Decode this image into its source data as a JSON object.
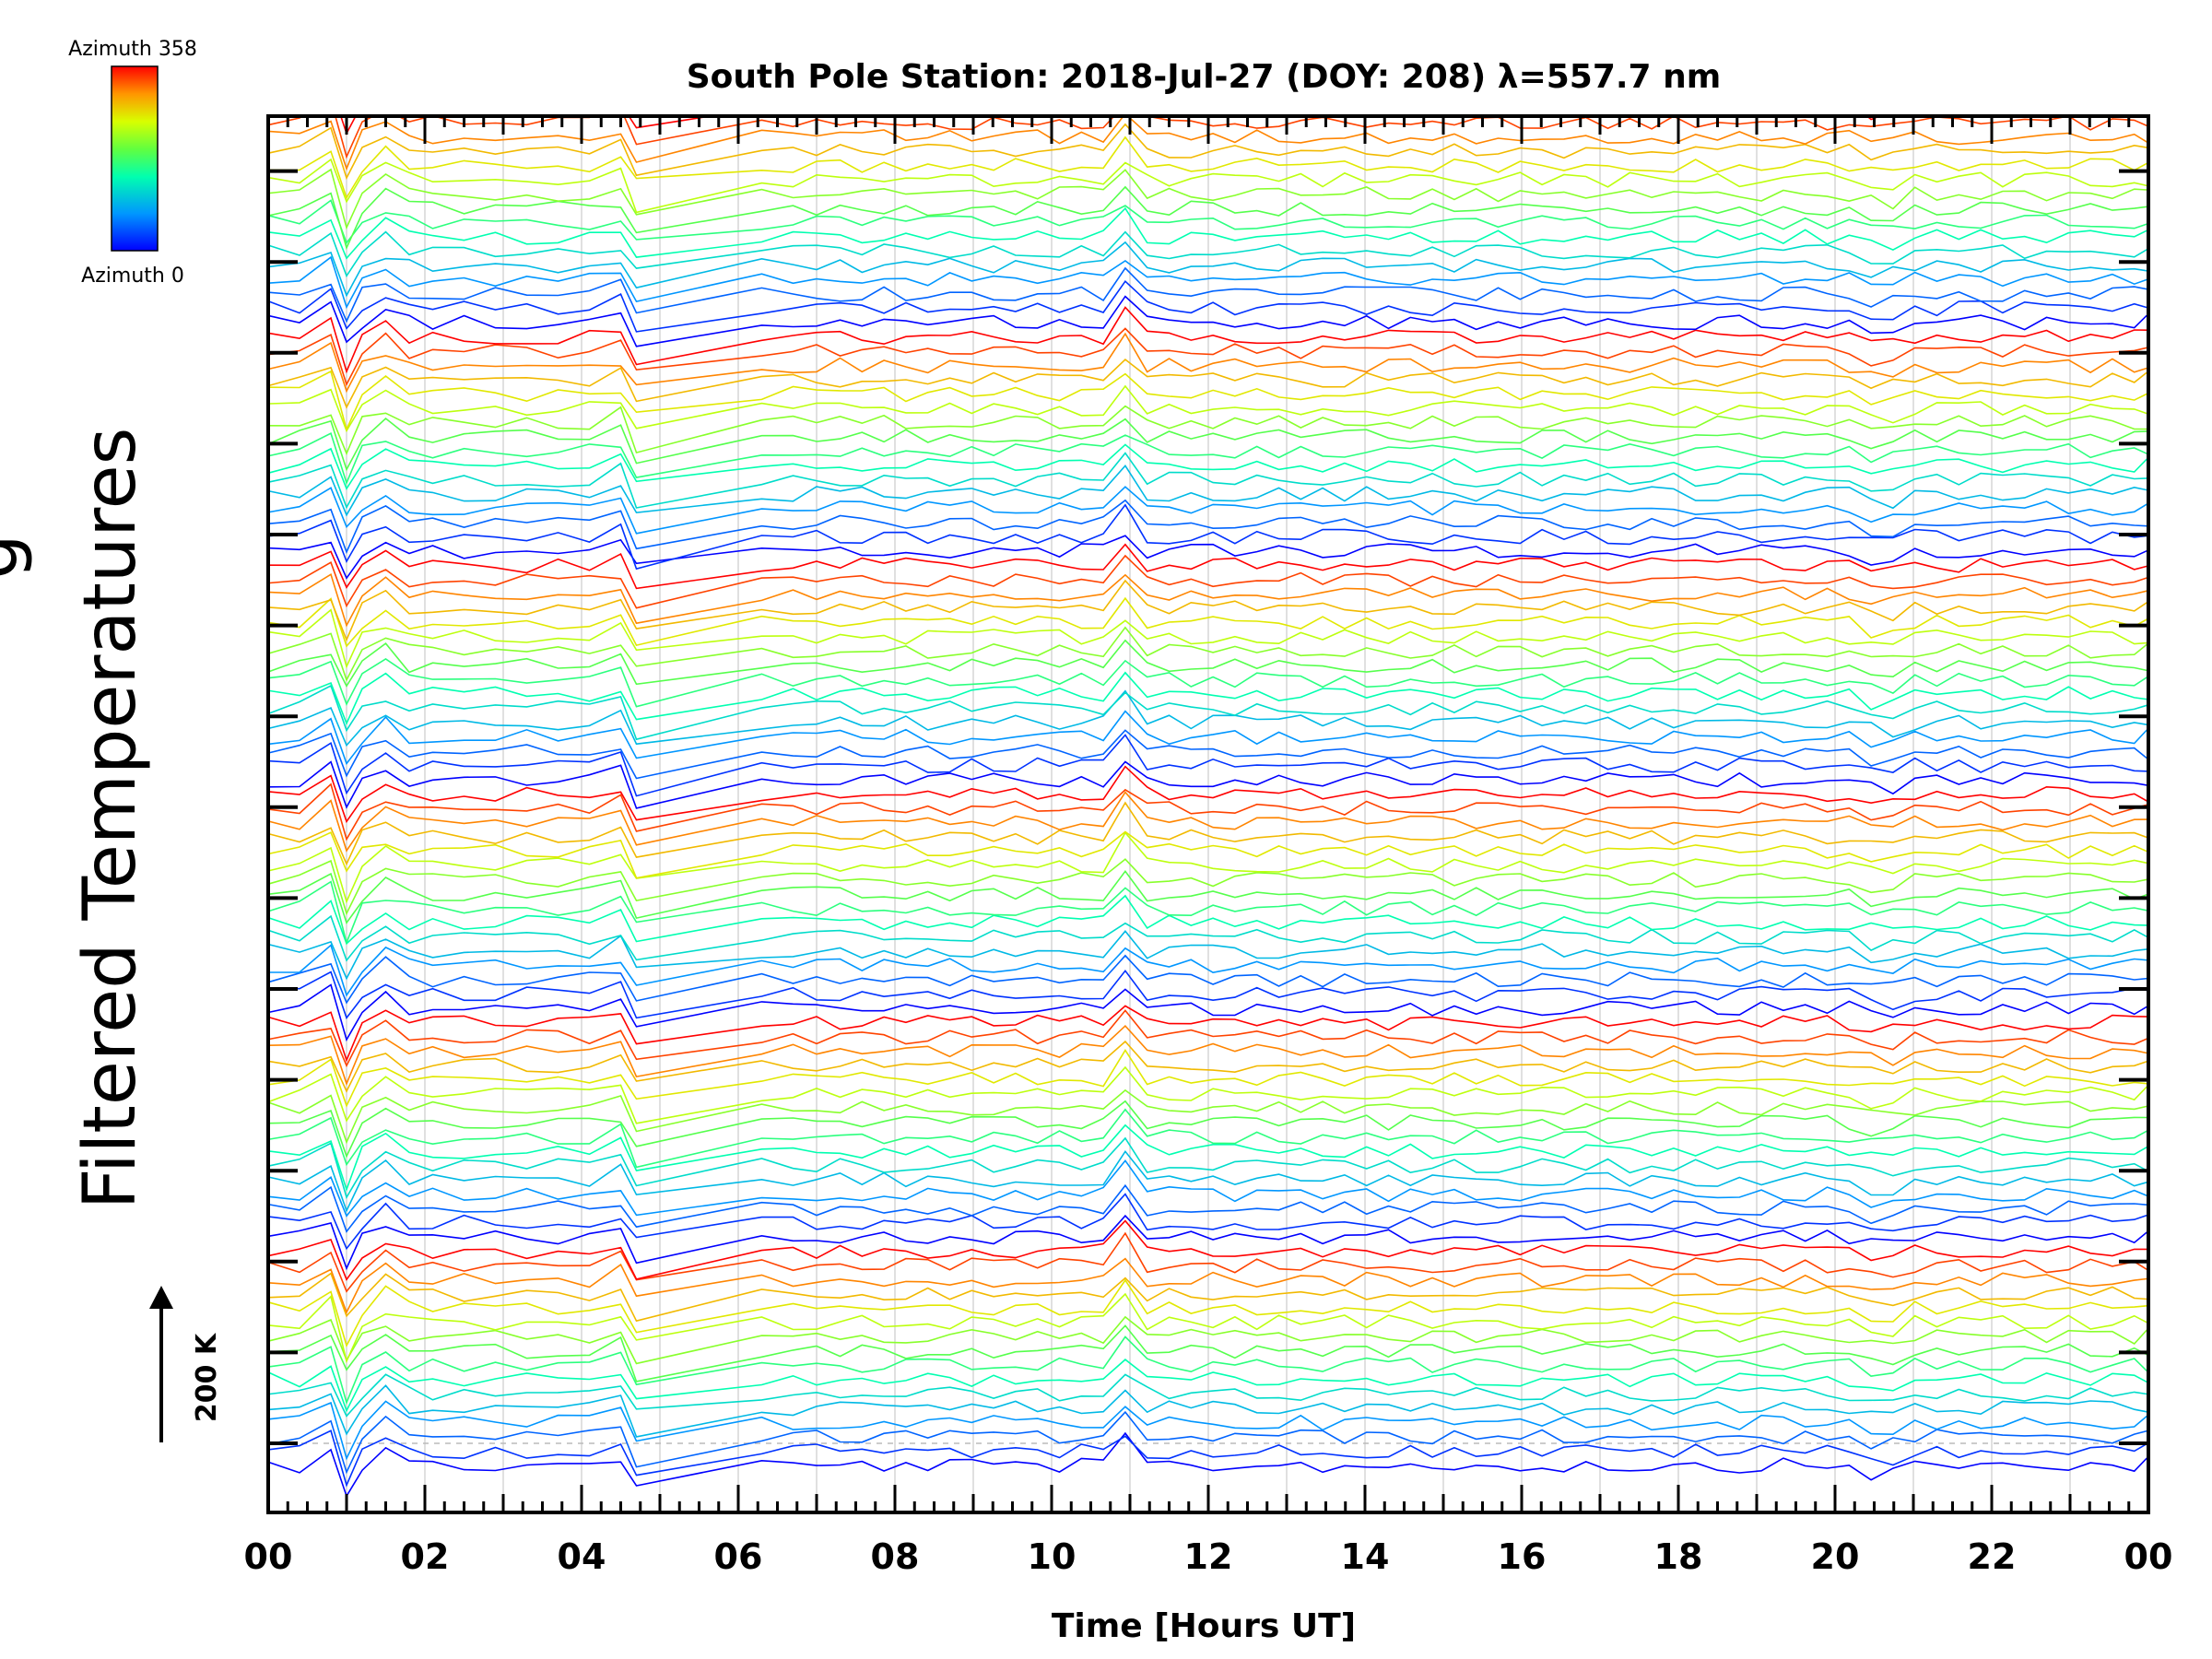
{
  "chart_data": {
    "type": "line",
    "title": "South Pole Station: 2018-Jul-27 (DOY: 208) λ=557.7 nm",
    "xlabel": "Time [Hours UT]",
    "ylabel_visible": "Filtered Temperatures",
    "ylabel_clipped": "g",
    "xlim": [
      0,
      24
    ],
    "x_tick_labels": [
      "00",
      "02",
      "04",
      "06",
      "08",
      "10",
      "12",
      "14",
      "16",
      "18",
      "20",
      "22",
      "00"
    ],
    "colorbar": {
      "top_label": "Azimuth 358",
      "bottom_label": "Azimuth 0",
      "colormap": "rainbow",
      "azimuth_range": [
        0,
        358
      ]
    },
    "scale_bar": {
      "label": "200 K"
    },
    "grid": true,
    "stacked_offsets": true,
    "num_series": 96,
    "series_color_note": "colour of each trace encodes viewing azimuth (blue = 0, red = 358)",
    "colors": {
      "axis": "#000000",
      "grid": "#cccccc",
      "background": "#ffffff"
    }
  }
}
